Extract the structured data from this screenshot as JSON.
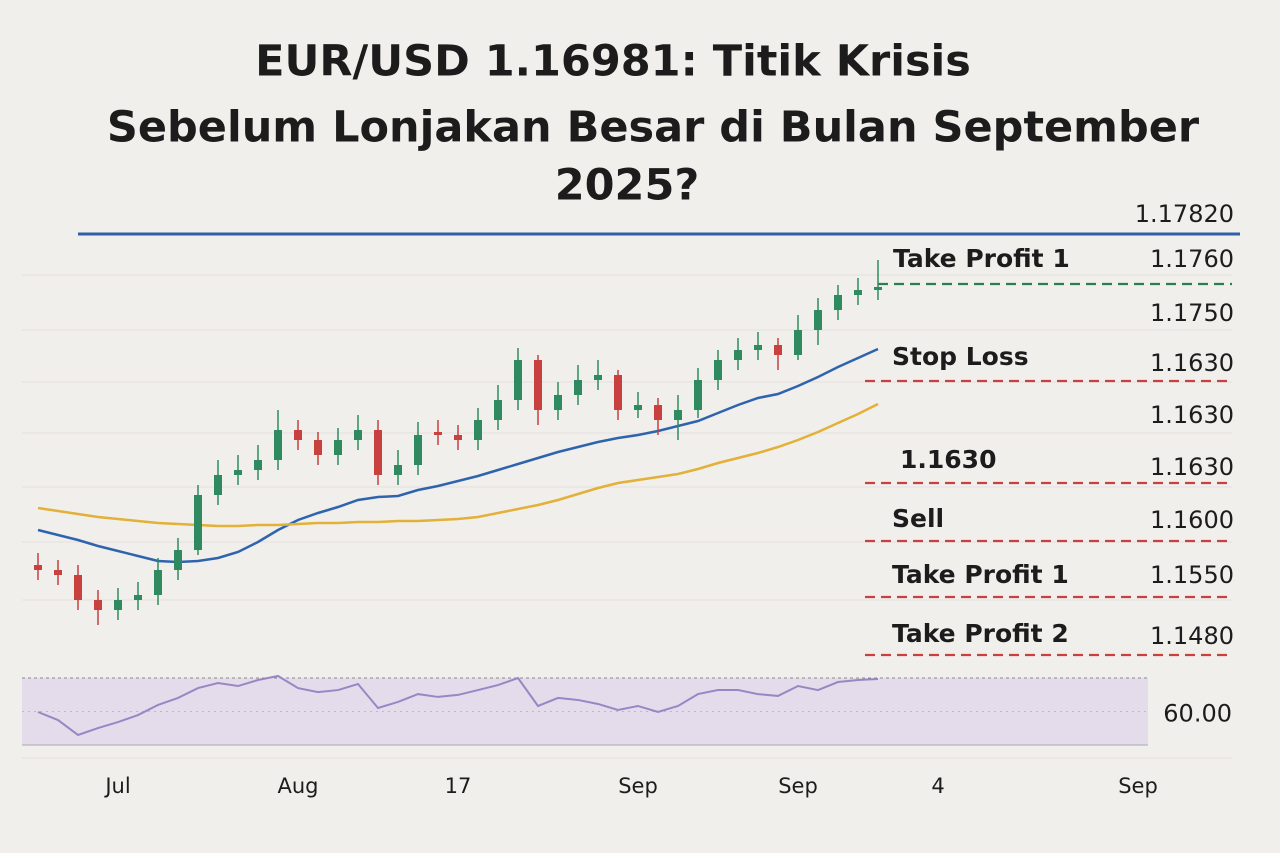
{
  "chart_data": {
    "type": "candlestick",
    "title_lines": [
      "EUR/USD 1.16981: Titik Krisis",
      "Sebelum Lonjakan Besar di Bulan September",
      "2025?"
    ],
    "categories": [
      null,
      null,
      null,
      null,
      "Jul",
      null,
      null,
      null,
      null,
      null,
      null,
      null,
      null,
      "Aug",
      null,
      null,
      null,
      null,
      null,
      null,
      null,
      "17",
      null,
      null,
      null,
      null,
      null,
      null,
      null,
      null,
      "Sep",
      null,
      null,
      null,
      null,
      null,
      null,
      null,
      "Sep",
      null,
      null,
      null,
      null,
      null,
      null,
      "4",
      null,
      null,
      null,
      null,
      null,
      null,
      null,
      null,
      null,
      "Sep"
    ],
    "open": [
      1.1485,
      1.148,
      1.1475,
      1.145,
      1.144,
      1.145,
      1.1455,
      1.148,
      1.15,
      1.1555,
      1.1575,
      1.158,
      1.159,
      1.162,
      1.161,
      1.1595,
      1.161,
      1.162,
      1.1575,
      1.1585,
      1.1618,
      1.1615,
      1.161,
      1.163,
      1.165,
      1.169,
      1.164,
      1.1655,
      1.167,
      1.1675,
      1.164,
      1.1645,
      1.163,
      1.164,
      1.167,
      1.169,
      1.17,
      1.1705,
      1.1695,
      1.172,
      1.174,
      1.1755,
      1.176,
      null,
      null,
      null,
      null,
      null,
      null,
      null,
      null,
      null,
      null,
      null,
      null,
      null
    ],
    "high": [
      1.1497,
      1.149,
      1.1485,
      1.146,
      1.1462,
      1.1468,
      1.1492,
      1.1512,
      1.1565,
      1.159,
      1.1595,
      1.1605,
      1.164,
      1.163,
      1.1618,
      1.1622,
      1.1635,
      1.163,
      1.16,
      1.1628,
      1.163,
      1.1625,
      1.1642,
      1.1665,
      1.1702,
      1.1695,
      1.1668,
      1.1685,
      1.169,
      1.168,
      1.1658,
      1.1652,
      1.1655,
      1.1682,
      1.17,
      1.1712,
      1.1718,
      1.1712,
      1.1735,
      1.1752,
      1.1765,
      1.1772,
      1.179,
      null,
      null,
      null,
      null,
      null,
      null,
      null,
      null,
      null,
      null,
      null,
      null,
      null
    ],
    "low": [
      1.147,
      1.1465,
      1.144,
      1.1425,
      1.143,
      1.144,
      1.1445,
      1.147,
      1.1495,
      1.1545,
      1.1565,
      1.157,
      1.158,
      1.16,
      1.1585,
      1.1585,
      1.16,
      1.1565,
      1.1565,
      1.1575,
      1.1605,
      1.16,
      1.16,
      1.162,
      1.164,
      1.1625,
      1.163,
      1.1645,
      1.166,
      1.163,
      1.1632,
      1.1615,
      1.161,
      1.1632,
      1.166,
      1.168,
      1.169,
      1.168,
      1.169,
      1.1705,
      1.173,
      1.1745,
      1.175,
      null,
      null,
      null,
      null,
      null,
      null,
      null,
      null,
      null,
      null,
      null,
      null,
      null
    ],
    "close": [
      1.148,
      1.1475,
      1.145,
      1.144,
      1.145,
      1.1455,
      1.148,
      1.15,
      1.1555,
      1.1575,
      1.158,
      1.159,
      1.162,
      1.161,
      1.1595,
      1.161,
      1.162,
      1.1575,
      1.1585,
      1.1615,
      1.1615,
      1.161,
      1.163,
      1.165,
      1.169,
      1.164,
      1.1655,
      1.167,
      1.1675,
      1.164,
      1.1645,
      1.163,
      1.164,
      1.167,
      1.169,
      1.17,
      1.1705,
      1.1695,
      1.172,
      1.174,
      1.1755,
      1.176,
      1.1763,
      null,
      null,
      null,
      null,
      null,
      null,
      null,
      null,
      null,
      null,
      null,
      null,
      null
    ],
    "up_color": "#2f8a5f",
    "down_color": "#c8413f",
    "lines": [
      {
        "color": "#2e64ad",
        "values": [
          1.152,
          1.1515,
          1.151,
          1.1504,
          1.1499,
          1.1494,
          1.1489,
          1.1488,
          1.1489,
          1.1492,
          1.1498,
          1.1508,
          1.152,
          1.153,
          1.1537,
          1.1543,
          1.155,
          1.1553,
          1.1554,
          1.156,
          1.1564,
          1.1569,
          1.1574,
          1.158,
          1.1586,
          1.1592,
          1.1598,
          1.1603,
          1.1608,
          1.1612,
          1.1615,
          1.1619,
          1.1624,
          1.1629,
          1.1637,
          1.1645,
          1.1652,
          1.1656,
          1.1664,
          1.1673,
          1.1683,
          1.1692,
          1.1701,
          null,
          null,
          null,
          null,
          null,
          null,
          null,
          null,
          null,
          null,
          null,
          null,
          null
        ]
      },
      {
        "color": "#e3b038",
        "values": [
          1.1542,
          1.1539,
          1.1536,
          1.1533,
          1.1531,
          1.1529,
          1.1527,
          1.1526,
          1.1525,
          1.1524,
          1.1524,
          1.1525,
          1.1525,
          1.1526,
          1.1527,
          1.1527,
          1.1528,
          1.1528,
          1.1529,
          1.1529,
          1.153,
          1.1531,
          1.1533,
          1.1537,
          1.1541,
          1.1545,
          1.155,
          1.1556,
          1.1562,
          1.1567,
          1.157,
          1.1573,
          1.1576,
          1.1581,
          1.1587,
          1.1592,
          1.1597,
          1.1603,
          1.161,
          1.1618,
          1.1627,
          1.1636,
          1.1646,
          null,
          null,
          null,
          null,
          null,
          null,
          null,
          null,
          null,
          null,
          null,
          null,
          null
        ]
      }
    ],
    "ylim": [
      1.138,
      1.182
    ],
    "levels": [
      {
        "value": 1.1816,
        "color": "#2e5ea8",
        "style": "solid"
      },
      {
        "value": 1.1766,
        "color": "#2f7d4f",
        "style": "dashed"
      },
      {
        "value": 1.1669,
        "color": "#c8413f",
        "style": "dashed"
      },
      {
        "value": 1.1567,
        "color": "#c8413f",
        "style": "dashed"
      },
      {
        "value": 1.1509,
        "color": "#c8413f",
        "style": "dashed"
      },
      {
        "value": 1.1453,
        "color": "#c8413f",
        "style": "dashed"
      },
      {
        "value": 1.1395,
        "color": "#c8413f",
        "style": "dashed"
      }
    ],
    "annotations": [
      "Take Profit 1",
      "Stop Loss",
      "1.1630",
      "Sell",
      "Take Profit 1",
      "Take Profit 2"
    ],
    "price_labels": [
      "1.17820",
      "1.1760",
      "1.1750",
      "1.1630",
      "1.1630",
      "1.1630",
      "1.1600",
      "1.1550",
      "1.1480"
    ],
    "rsi": {
      "color": "#9a86c4",
      "ylim": [
        40,
        80
      ],
      "yticks": [
        {
          "value": 60,
          "label": "60.00"
        }
      ],
      "values": [
        59.7,
        54.9,
        46.0,
        50.1,
        53.7,
        57.9,
        63.9,
        68.1,
        74.0,
        77.0,
        75.2,
        78.8,
        81.2,
        74.0,
        71.6,
        72.8,
        76.4,
        62.1,
        65.7,
        70.4,
        68.7,
        69.9,
        72.8,
        75.8,
        80.0,
        63.3,
        68.1,
        66.9,
        64.5,
        60.9,
        63.3,
        59.7,
        63.3,
        70.4,
        72.8,
        72.8,
        70.4,
        69.3,
        75.2,
        72.8,
        77.6,
        78.8,
        79.4,
        null,
        null,
        null,
        null,
        null,
        null,
        null,
        null,
        null,
        null,
        null,
        null,
        null
      ]
    }
  }
}
